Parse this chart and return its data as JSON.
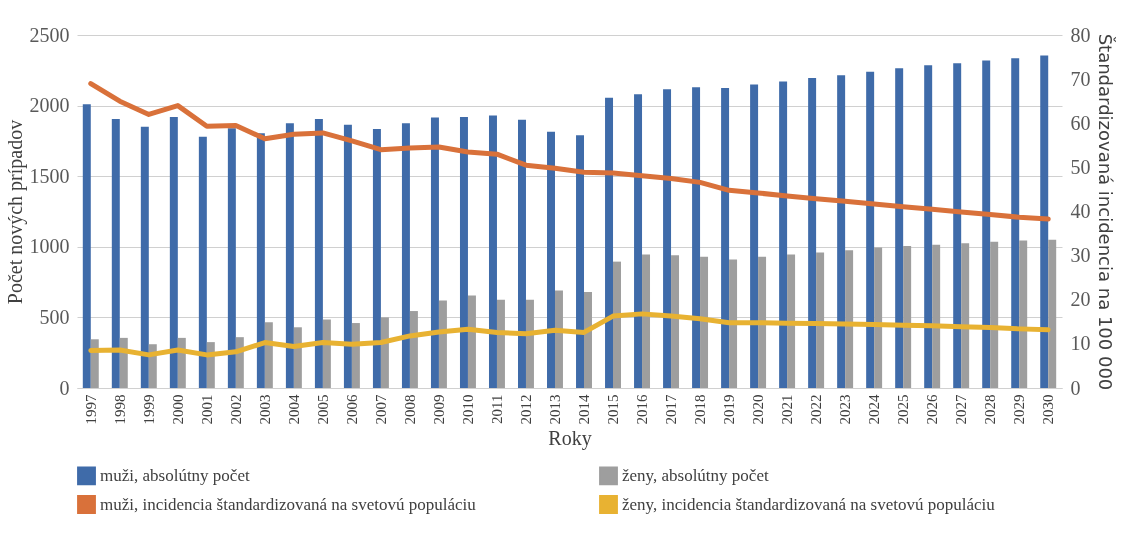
{
  "chart_data": {
    "type": "bar",
    "xlabel": "Roky",
    "ylabel": "Počet nových prípadov",
    "y2label": "Štandardizovaná incidencia na 100 000",
    "categories": [
      "1997",
      "1998",
      "1999",
      "2000",
      "2001",
      "2002",
      "2003",
      "2004",
      "2005",
      "2006",
      "2007",
      "2008",
      "2009",
      "2010",
      "2011",
      "2012",
      "2013",
      "2014",
      "2015",
      "2016",
      "2017",
      "2018",
      "2019",
      "2020",
      "2021",
      "2022",
      "2023",
      "2024",
      "2025",
      "2026",
      "2027",
      "2028",
      "2029",
      "2030"
    ],
    "series": [
      {
        "name": "muži, absolútny počet",
        "color": "#3f6ba9",
        "values": [
          2010,
          1905,
          1850,
          1920,
          1780,
          1840,
          1805,
          1875,
          1905,
          1865,
          1835,
          1875,
          1915,
          1920,
          1930,
          1900,
          1815,
          1790,
          2055,
          2080,
          2115,
          2130,
          2125,
          2150,
          2170,
          2195,
          2215,
          2240,
          2265,
          2285,
          2300,
          2320,
          2335,
          2355
        ]
      },
      {
        "name": "ženy, absolútny počet",
        "color": "#9e9e9e",
        "values": [
          345,
          355,
          310,
          355,
          325,
          360,
          465,
          430,
          485,
          460,
          500,
          545,
          620,
          655,
          625,
          625,
          690,
          680,
          895,
          945,
          940,
          930,
          910,
          930,
          945,
          960,
          975,
          995,
          1005,
          1015,
          1025,
          1035,
          1045,
          1050
        ]
      },
      {
        "name": "muži, incidencia štandardizovaná na svetovú populáciu",
        "type": "line",
        "axis": "y2",
        "color": "#d9713a",
        "values": [
          69,
          65,
          62,
          64,
          59.3,
          59.5,
          56.5,
          57.5,
          57.8,
          56,
          54,
          54.4,
          54.6,
          53.5,
          53,
          50.5,
          49.8,
          48.9,
          48.7,
          48.1,
          47.5,
          46.6,
          44.8,
          44.2,
          43.5,
          42.9,
          42.3,
          41.7,
          41.1,
          40.5,
          39.9,
          39.3,
          38.7,
          38.3
        ]
      },
      {
        "name": "ženy, incidencia štandardizovaná na svetovú populáciu",
        "type": "line",
        "axis": "y2",
        "color": "#e8b232",
        "values": [
          8.5,
          8.6,
          7.5,
          8.6,
          7.5,
          8.2,
          10.3,
          9.4,
          10.3,
          9.9,
          10.3,
          11.8,
          12.7,
          13.3,
          12.6,
          12.3,
          13.1,
          12.6,
          16.3,
          16.8,
          16.3,
          15.7,
          14.8,
          14.8,
          14.7,
          14.6,
          14.5,
          14.4,
          14.2,
          14.1,
          13.9,
          13.7,
          13.4,
          13.2
        ]
      }
    ],
    "ylim": [
      0,
      2500
    ],
    "yticks": [
      0,
      500,
      1000,
      1500,
      2000,
      2500
    ],
    "y2lim": [
      0,
      80
    ],
    "y2ticks": [
      0,
      10,
      20,
      30,
      40,
      50,
      60,
      70,
      80
    ],
    "grid": "y",
    "legend": "bottom"
  }
}
